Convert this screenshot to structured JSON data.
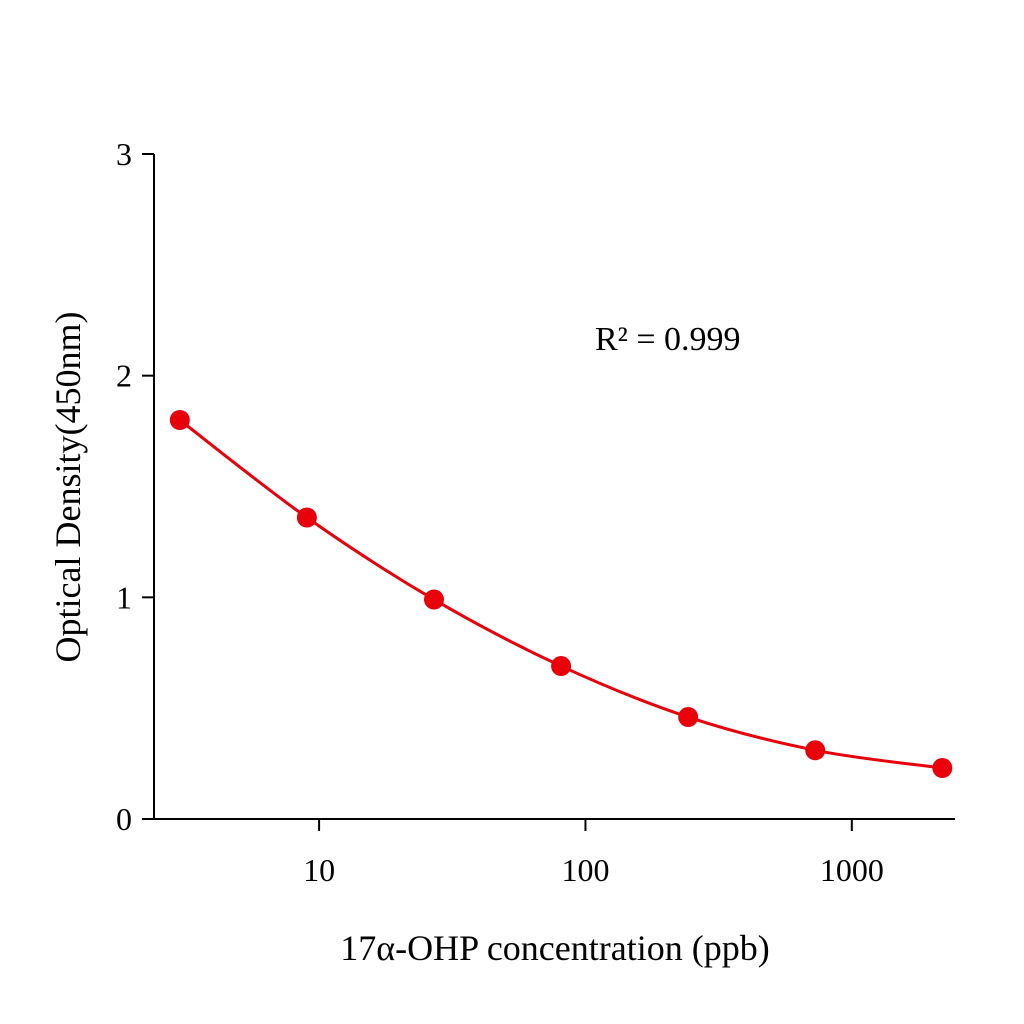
{
  "chart_data": {
    "type": "scatter",
    "title": "",
    "xlabel": "17α-OHP concentration (ppb)",
    "ylabel": "Optical Density(450nm)",
    "x_scale": "log",
    "xlim": [
      2.4,
      2440
    ],
    "ylim": [
      0,
      3
    ],
    "x_ticks": [
      10,
      100,
      1000
    ],
    "x_tick_labels": [
      "10",
      "100",
      "1000"
    ],
    "y_ticks": [
      0,
      1,
      2,
      3
    ],
    "y_tick_labels": [
      "0",
      "1",
      "2",
      "3"
    ],
    "grid": false,
    "annotation": "R² = 0.999",
    "series": [
      {
        "x": [
          3,
          9,
          27,
          81,
          243,
          729,
          2187
        ],
        "y": [
          1.8,
          1.36,
          0.99,
          0.69,
          0.46,
          0.31,
          0.23
        ],
        "color": "#e8000b",
        "fit_line": true
      }
    ]
  }
}
